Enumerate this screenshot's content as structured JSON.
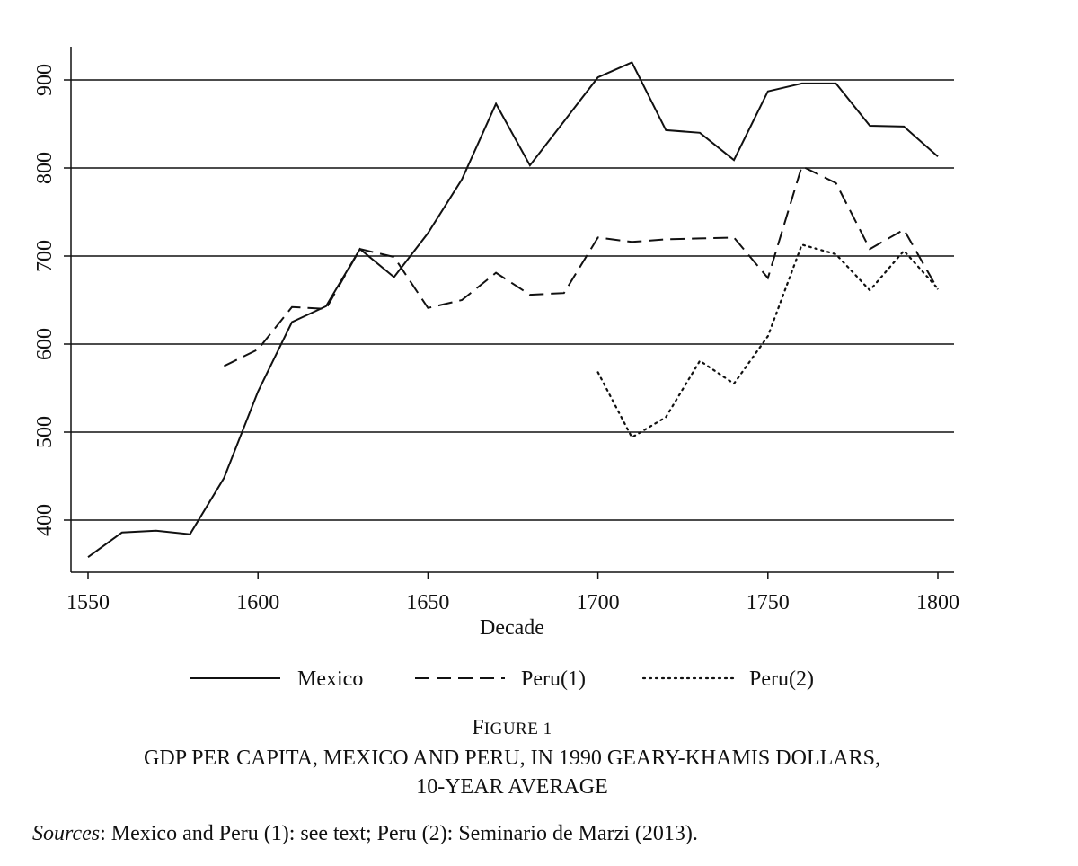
{
  "chart_data": {
    "type": "line",
    "xlabel": "Decade",
    "ylabel": "",
    "xlim": [
      1550,
      1800
    ],
    "ylim": [
      335,
      935
    ],
    "x_ticks": [
      1550,
      1600,
      1650,
      1700,
      1750,
      1800
    ],
    "y_ticks": [
      400,
      500,
      600,
      700,
      800,
      900
    ],
    "grid": "horizontal",
    "legend_position": "bottom",
    "series": [
      {
        "name": "Mexico",
        "style": "solid",
        "x": [
          1550,
          1560,
          1570,
          1580,
          1590,
          1600,
          1610,
          1620,
          1630,
          1640,
          1650,
          1660,
          1670,
          1680,
          1690,
          1700,
          1710,
          1720,
          1730,
          1740,
          1750,
          1760,
          1770,
          1780,
          1790,
          1800
        ],
        "y": [
          358,
          386,
          388,
          384,
          448,
          546,
          625,
          643,
          708,
          676,
          726,
          787,
          873,
          803,
          853,
          903,
          920,
          843,
          840,
          809,
          887,
          896,
          896,
          848,
          847,
          813
        ]
      },
      {
        "name": "Peru(1)",
        "style": "dashed",
        "x": [
          1590,
          1600,
          1610,
          1620,
          1630,
          1640,
          1650,
          1660,
          1670,
          1680,
          1690,
          1700,
          1710,
          1720,
          1730,
          1740,
          1750,
          1760,
          1770,
          1780,
          1790,
          1800
        ],
        "y": [
          575,
          594,
          642,
          640,
          708,
          699,
          641,
          650,
          681,
          656,
          658,
          721,
          716,
          719,
          720,
          721,
          675,
          802,
          783,
          708,
          730,
          662
        ]
      },
      {
        "name": "Peru(2)",
        "style": "dotted",
        "x": [
          1700,
          1710,
          1720,
          1730,
          1740,
          1750,
          1760,
          1770,
          1780,
          1790,
          1800
        ],
        "y": [
          568,
          494,
          517,
          581,
          555,
          609,
          713,
          702,
          661,
          706,
          663
        ]
      }
    ]
  },
  "caption": {
    "figure_label_first": "F",
    "figure_label_rest": "IGURE 1",
    "title_line_1": "GDP PER CAPITA, MEXICO AND PERU, IN 1990 GEARY-KHAMIS DOLLARS,",
    "title_line_2": "10-YEAR AVERAGE",
    "sources_label": "Sources",
    "sources_text": ": Mexico and Peru (1): see text; Peru (2): Seminario de Marzi (2013)."
  }
}
